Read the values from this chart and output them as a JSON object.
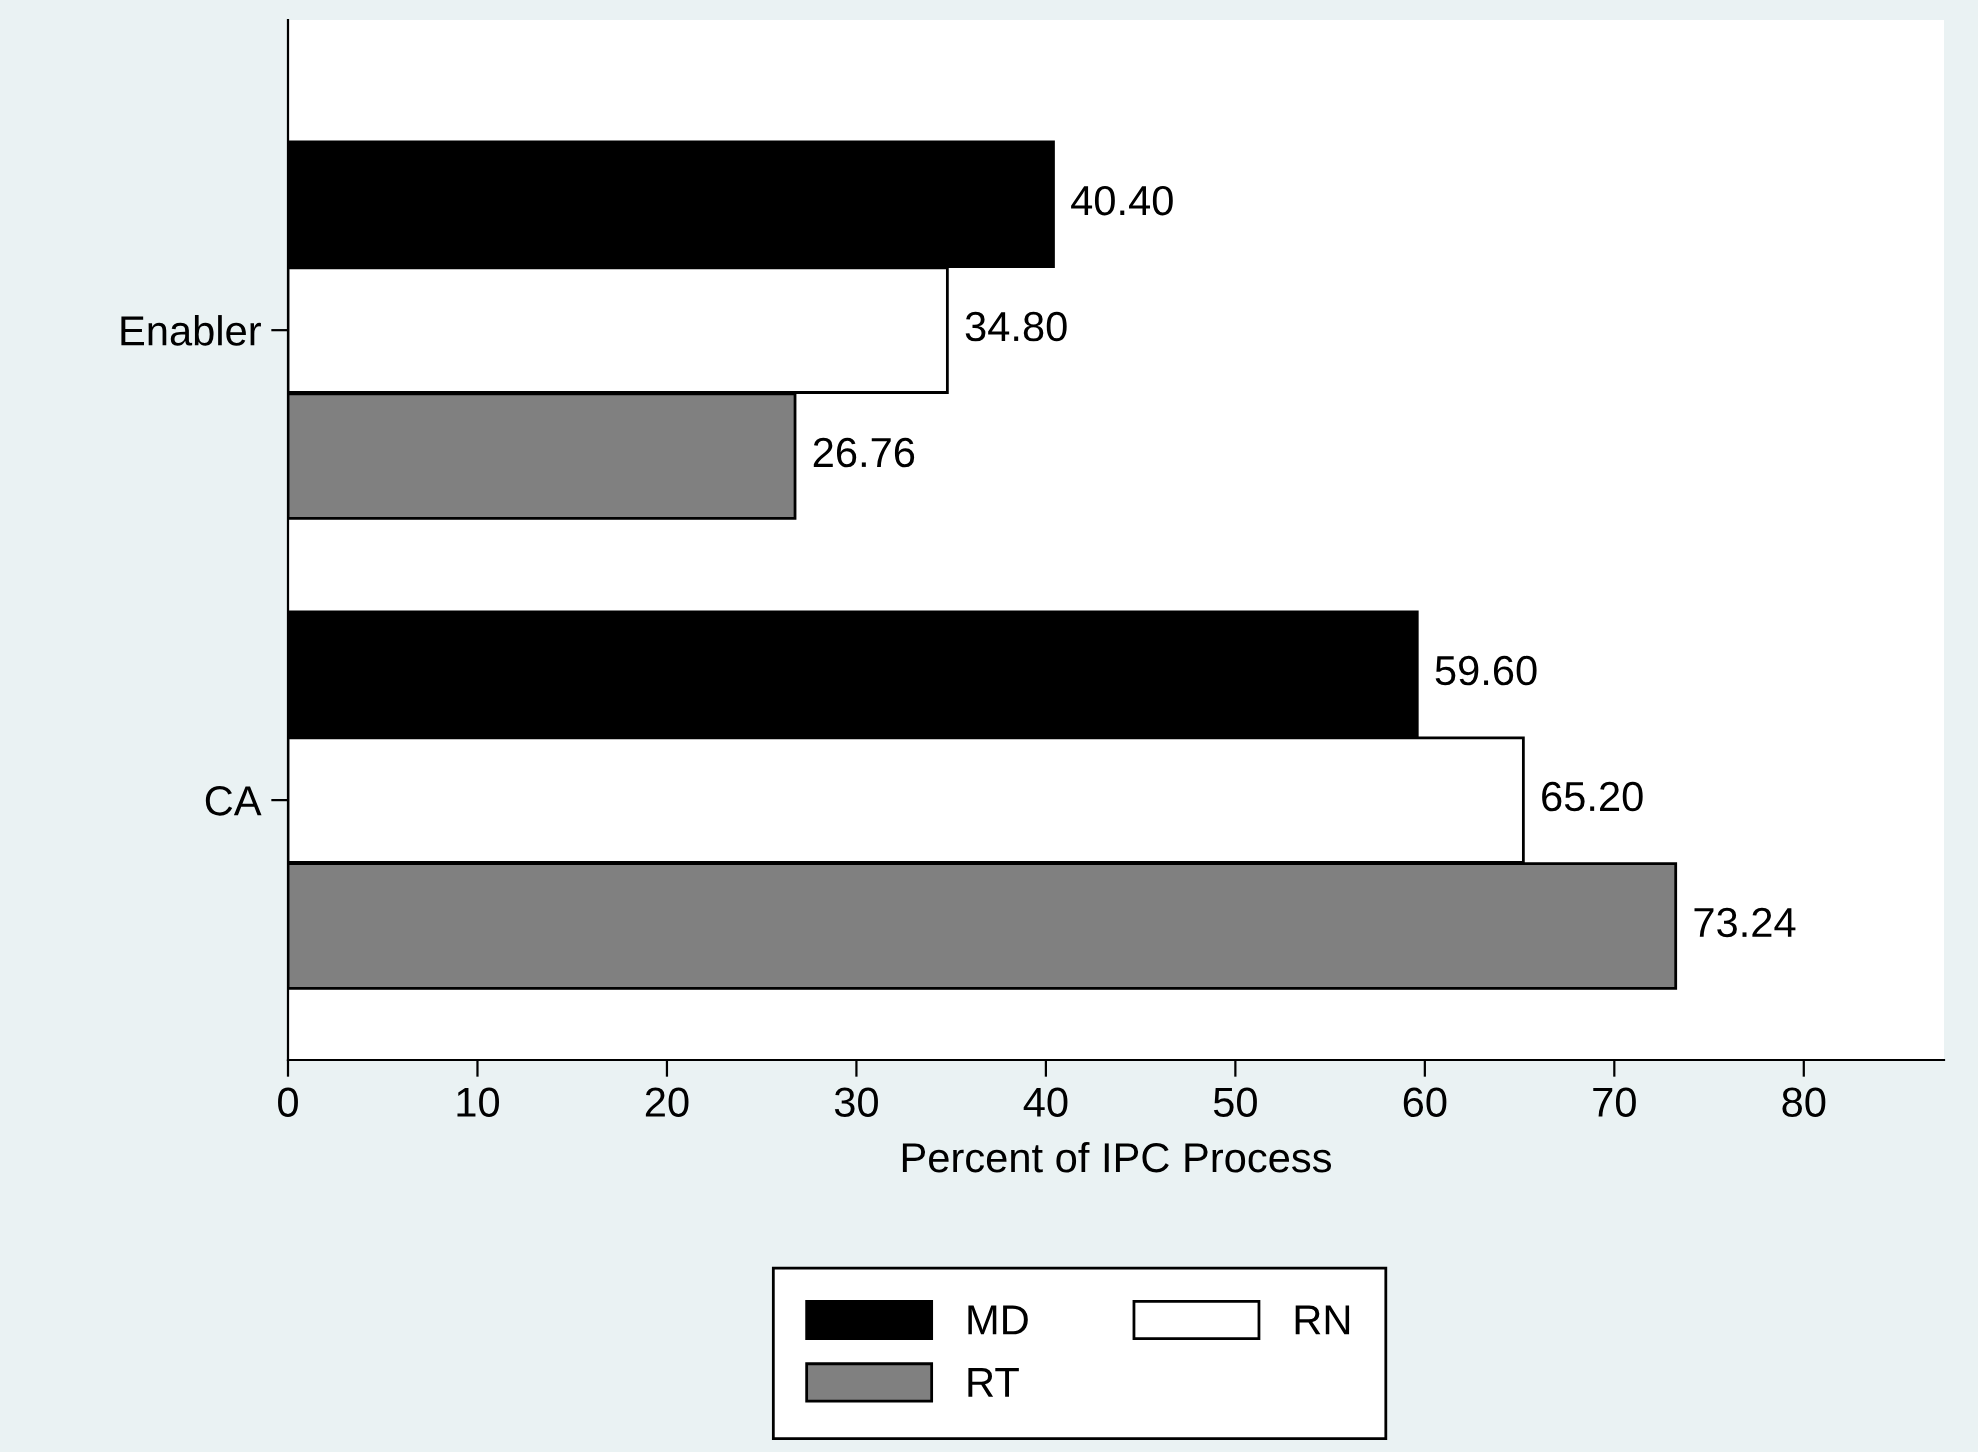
{
  "chart_data": {
    "type": "bar",
    "orientation": "horizontal",
    "xlabel": "Percent of IPC Process",
    "categories": [
      "Enabler",
      "CA"
    ],
    "series": [
      {
        "name": "MD",
        "color": "#000000",
        "values": [
          40.4,
          59.6
        ],
        "value_labels": [
          "40.40",
          "59.60"
        ]
      },
      {
        "name": "RN",
        "color": "#ffffff",
        "values": [
          34.8,
          65.2
        ],
        "value_labels": [
          "34.80",
          "65.20"
        ]
      },
      {
        "name": "RT",
        "color": "#808080",
        "values": [
          26.76,
          73.24
        ],
        "value_labels": [
          "26.76",
          "73.24"
        ]
      }
    ],
    "xlim": [
      0,
      87.4
    ],
    "xticks": [
      0,
      10,
      20,
      30,
      40,
      50,
      60,
      70,
      80
    ],
    "grid": false,
    "legend": "bottom"
  }
}
